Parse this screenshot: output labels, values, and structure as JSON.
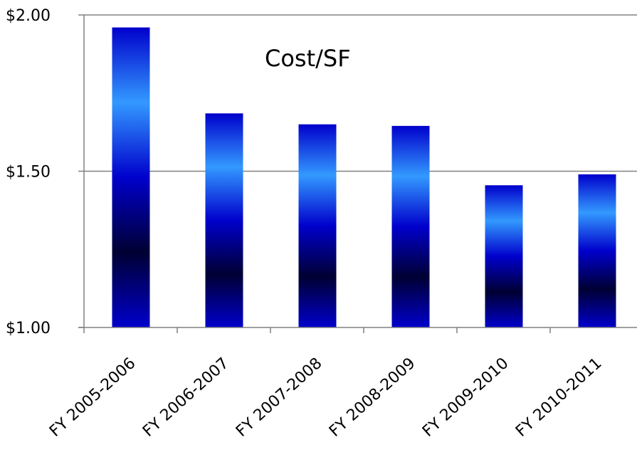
{
  "chart_data": {
    "type": "bar",
    "title": "Cost/SF",
    "categories": [
      "FY 2005-2006",
      "FY 2006-2007",
      "FY 2007-2008",
      "FY 2008-2009",
      "FY 2009-2010",
      "FY 2010-2011"
    ],
    "values": [
      1.96,
      1.685,
      1.65,
      1.645,
      1.455,
      1.49
    ],
    "ylim": [
      1.0,
      2.0
    ],
    "yticks": [
      1.0,
      1.5,
      2.0
    ],
    "ytick_labels": [
      "$1.00",
      "$1.50",
      "$2.00"
    ],
    "grid": true,
    "legend": "none",
    "xlabel": "",
    "ylabel": "",
    "colors": {
      "bar_dark": "#000033",
      "bar_mid": "#0000cc",
      "bar_light": "#3399ff",
      "grid": "#808080"
    }
  }
}
